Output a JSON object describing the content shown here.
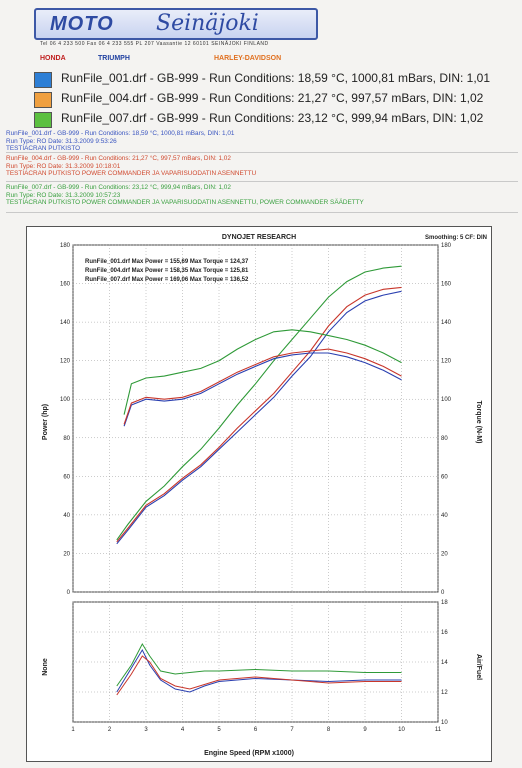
{
  "header": {
    "logo_word1": "MOTO",
    "logo_word2": "Seinäjoki",
    "contact_line": "Tel 06 4 233 500   Fax 06 4 233 555   PL 207   Vaasantie 12   60101 SEINÄJOKI FINLAND",
    "brands": [
      "HONDA",
      "TRIUMPH",
      "HARLEY-DAVIDSON"
    ]
  },
  "legend": [
    {
      "label": "RunFile_001.drf - GB-999 -  Run Conditions: 18,59 °C, 1000,81 mBars, DIN: 1,01",
      "color": "#2d7fd6"
    },
    {
      "label": "RunFile_004.drf - GB-999 -  Run Conditions: 21,27 °C, 997,57 mBars, DIN: 1,02",
      "color": "#f0a040"
    },
    {
      "label": "RunFile_007.drf - GB-999 -  Run Conditions: 23,12 °C, 999,94 mBars, DIN: 1,02",
      "color": "#5cc040"
    }
  ],
  "runs": [
    {
      "line1": "RunFile_001.drf - GB-999 -  Run Conditions: 18,59 °C, 1000,81 mBars, DIN: 1,01",
      "line2": "Run Type: RO  Date: 31.3.2009 9:53:26",
      "line3": "TESTIACRAN PUTKISTO",
      "color": "#3a55c0"
    },
    {
      "line1": "RunFile_004.drf - GB-999 -  Run Conditions: 21,27 °C, 997,57 mBars, DIN: 1,02",
      "line2": "Run Type: RO  Date: 31.3.2009 10:18:01",
      "line3": "TESTIACRAN PUTKISTO POWER COMMANDER JA VAPARISUODATIN ASENNETTU",
      "color": "#d04a30"
    },
    {
      "line1": "RunFile_007.drf - GB-999 -  Run Conditions: 23,12 °C, 999,94 mBars, DIN: 1,02",
      "line2": "Run Type: RO  Date: 31.3.2009 10:57:23",
      "line3": "TESTIACRAN PUTKISTO POWER COMMANDER JA VAPARISUODATIN ASENNETTU, POWER COMMANDER SÄÄDETTY",
      "color": "#3aa040"
    }
  ],
  "chart_data": [
    {
      "type": "line",
      "title": "DYNOJET RESEARCH",
      "smoothing": "Smoothing: 5  CF: DIN",
      "ylabel": "Power (hp)",
      "y2label": "Torque (N-M)",
      "xlim": [
        1,
        11
      ],
      "ylim": [
        0,
        180
      ],
      "y2lim": [
        0,
        180
      ],
      "yticks": [
        0,
        20,
        40,
        60,
        80,
        100,
        120,
        140,
        160,
        180
      ],
      "grid": true,
      "annotations": [
        "RunFile_001.drf Max Power = 155,69 Max Torque = 124,37",
        "RunFile_004.drf Max Power = 158,35 Max Torque = 125,81",
        "RunFile_007.drf Max Power = 169,06 Max Torque = 136,52"
      ],
      "series": [
        {
          "name": "RunFile_001.drf",
          "kind": "power",
          "color": "#2a3fb0",
          "x": [
            2.2,
            2.5,
            3.0,
            3.5,
            4.0,
            4.5,
            5.0,
            5.5,
            6.0,
            6.5,
            7.0,
            7.5,
            8.0,
            8.5,
            9.0,
            9.5,
            10.0
          ],
          "y": [
            25,
            32,
            44,
            50,
            58,
            65,
            74,
            83,
            92,
            101,
            112,
            122,
            135,
            145,
            151,
            154,
            156
          ]
        },
        {
          "name": "RunFile_004.drf",
          "kind": "power",
          "color": "#c8362b",
          "x": [
            2.2,
            2.5,
            3.0,
            3.5,
            4.0,
            4.5,
            5.0,
            5.5,
            6.0,
            6.5,
            7.0,
            7.5,
            8.0,
            8.5,
            9.0,
            9.5,
            10.0
          ],
          "y": [
            26,
            33,
            45,
            51,
            59,
            66,
            75,
            85,
            94,
            103,
            114,
            125,
            138,
            148,
            154,
            157,
            158
          ]
        },
        {
          "name": "RunFile_007.drf",
          "kind": "power",
          "color": "#2f9a38",
          "x": [
            2.2,
            2.5,
            3.0,
            3.5,
            4.0,
            4.5,
            5.0,
            5.5,
            6.0,
            6.5,
            7.0,
            7.5,
            8.0,
            8.5,
            9.0,
            9.5,
            10.0
          ],
          "y": [
            27,
            35,
            47,
            55,
            65,
            74,
            85,
            97,
            108,
            120,
            131,
            142,
            153,
            161,
            166,
            168,
            169
          ]
        },
        {
          "name": "RunFile_001.drf",
          "kind": "torque",
          "color": "#2a3fb0",
          "x": [
            2.4,
            2.6,
            3.0,
            3.5,
            4.0,
            4.5,
            5.0,
            5.5,
            6.0,
            6.5,
            7.0,
            7.5,
            8.0,
            8.5,
            9.0,
            9.5,
            10.0
          ],
          "y": [
            86,
            97,
            100,
            99,
            100,
            103,
            108,
            113,
            117,
            121,
            123,
            124,
            124,
            122,
            119,
            115,
            110
          ]
        },
        {
          "name": "RunFile_004.drf",
          "kind": "torque",
          "color": "#c8362b",
          "x": [
            2.4,
            2.6,
            3.0,
            3.5,
            4.0,
            4.5,
            5.0,
            5.5,
            6.0,
            6.5,
            7.0,
            7.5,
            8.0,
            8.5,
            9.0,
            9.5,
            10.0
          ],
          "y": [
            87,
            98,
            101,
            100,
            101,
            104,
            109,
            114,
            118,
            122,
            124,
            125,
            126,
            124,
            121,
            117,
            112
          ]
        },
        {
          "name": "RunFile_007.drf",
          "kind": "torque",
          "color": "#2f9a38",
          "x": [
            2.4,
            2.6,
            3.0,
            3.5,
            4.0,
            4.5,
            5.0,
            5.5,
            6.0,
            6.5,
            7.0,
            7.5,
            8.0,
            8.5,
            9.0,
            9.5,
            10.0
          ],
          "y": [
            92,
            108,
            111,
            112,
            114,
            116,
            120,
            126,
            131,
            135,
            136,
            135,
            133,
            131,
            128,
            124,
            119
          ]
        }
      ]
    },
    {
      "type": "line",
      "ylabel": "None",
      "y2label": "Air/Fuel",
      "xlabel": "Engine Speed (RPM x1000)",
      "xlim": [
        1,
        11
      ],
      "xticks": [
        1,
        2,
        3,
        4,
        5,
        6,
        7,
        8,
        9,
        10,
        11
      ],
      "y2lim": [
        10,
        18
      ],
      "y2ticks": [
        10,
        12,
        14,
        16,
        18
      ],
      "grid": true,
      "series": [
        {
          "name": "RunFile_001.drf",
          "color": "#2a3fb0",
          "x": [
            2.2,
            2.6,
            2.9,
            3.1,
            3.4,
            3.8,
            4.2,
            4.6,
            5.0,
            6.0,
            7.0,
            8.0,
            9.0,
            10.0
          ],
          "y": [
            12.0,
            13.6,
            14.8,
            13.8,
            12.8,
            12.2,
            12.0,
            12.4,
            12.7,
            12.9,
            12.8,
            12.7,
            12.8,
            12.8
          ]
        },
        {
          "name": "RunFile_004.drf",
          "color": "#c8362b",
          "x": [
            2.2,
            2.6,
            2.9,
            3.1,
            3.4,
            3.8,
            4.2,
            4.6,
            5.0,
            6.0,
            7.0,
            8.0,
            9.0,
            10.0
          ],
          "y": [
            11.8,
            13.2,
            14.4,
            14.0,
            12.9,
            12.4,
            12.2,
            12.5,
            12.8,
            13.0,
            12.8,
            12.6,
            12.7,
            12.7
          ]
        },
        {
          "name": "RunFile_007.drf",
          "color": "#2f9a38",
          "x": [
            2.2,
            2.6,
            2.9,
            3.1,
            3.4,
            3.8,
            4.2,
            4.6,
            5.0,
            6.0,
            7.0,
            8.0,
            9.0,
            10.0
          ],
          "y": [
            12.4,
            13.8,
            15.2,
            14.4,
            13.4,
            13.2,
            13.3,
            13.4,
            13.4,
            13.5,
            13.4,
            13.4,
            13.3,
            13.3
          ]
        }
      ]
    }
  ]
}
